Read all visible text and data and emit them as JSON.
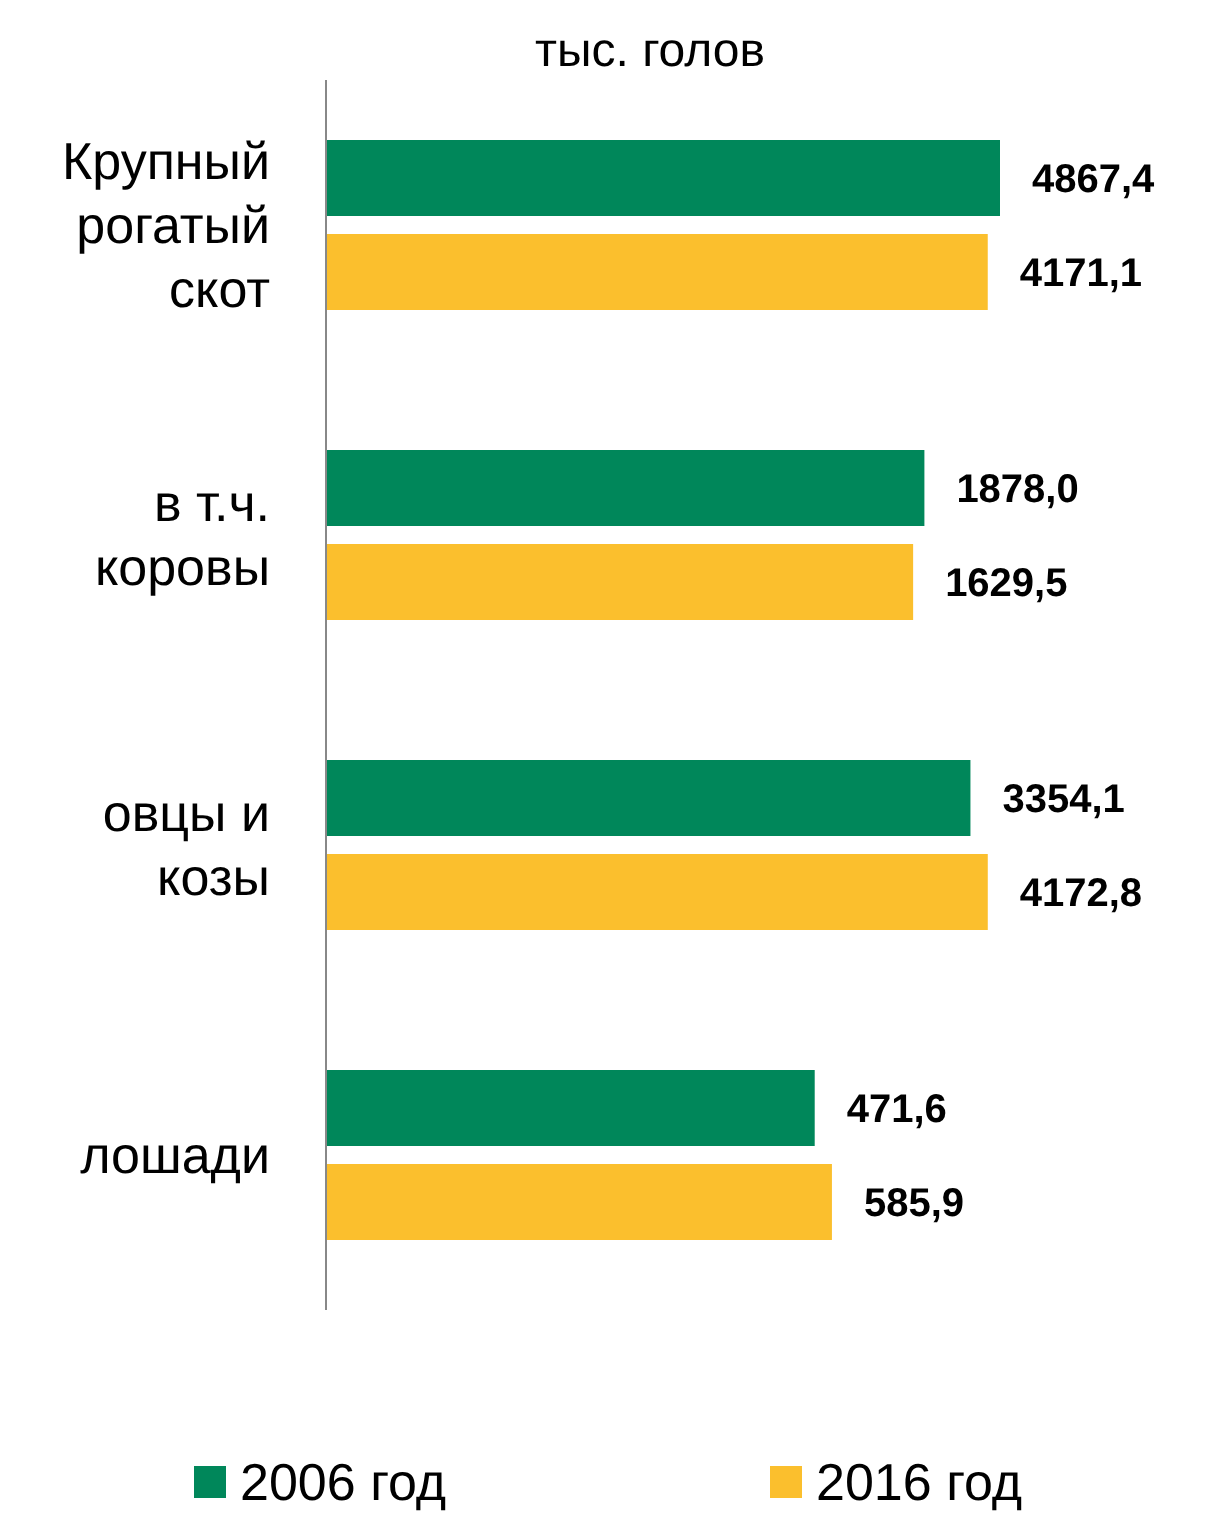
{
  "chart_data": {
    "type": "bar",
    "orientation": "horizontal",
    "title": "тыс. голов",
    "categories": [
      "Крупный рогатый скот",
      "в т.ч. коровы",
      "овцы и козы",
      "лошади"
    ],
    "series": [
      {
        "name": "2006 год",
        "color": "#00875a",
        "values": [
          4867.4,
          1878.0,
          3354.1,
          471.6
        ],
        "value_labels": [
          "4867,4",
          "1878,0",
          "3354,1",
          "471,6"
        ]
      },
      {
        "name": "2016 год",
        "color": "#fbbf2d",
        "values": [
          4171.1,
          1629.5,
          4172.8,
          585.9
        ],
        "value_labels": [
          "4171,1",
          "1629,5",
          "4172,8",
          "585,9"
        ]
      }
    ],
    "log": "x",
    "xlim": [
      1,
      4867.4
    ],
    "legend": "bottom"
  }
}
